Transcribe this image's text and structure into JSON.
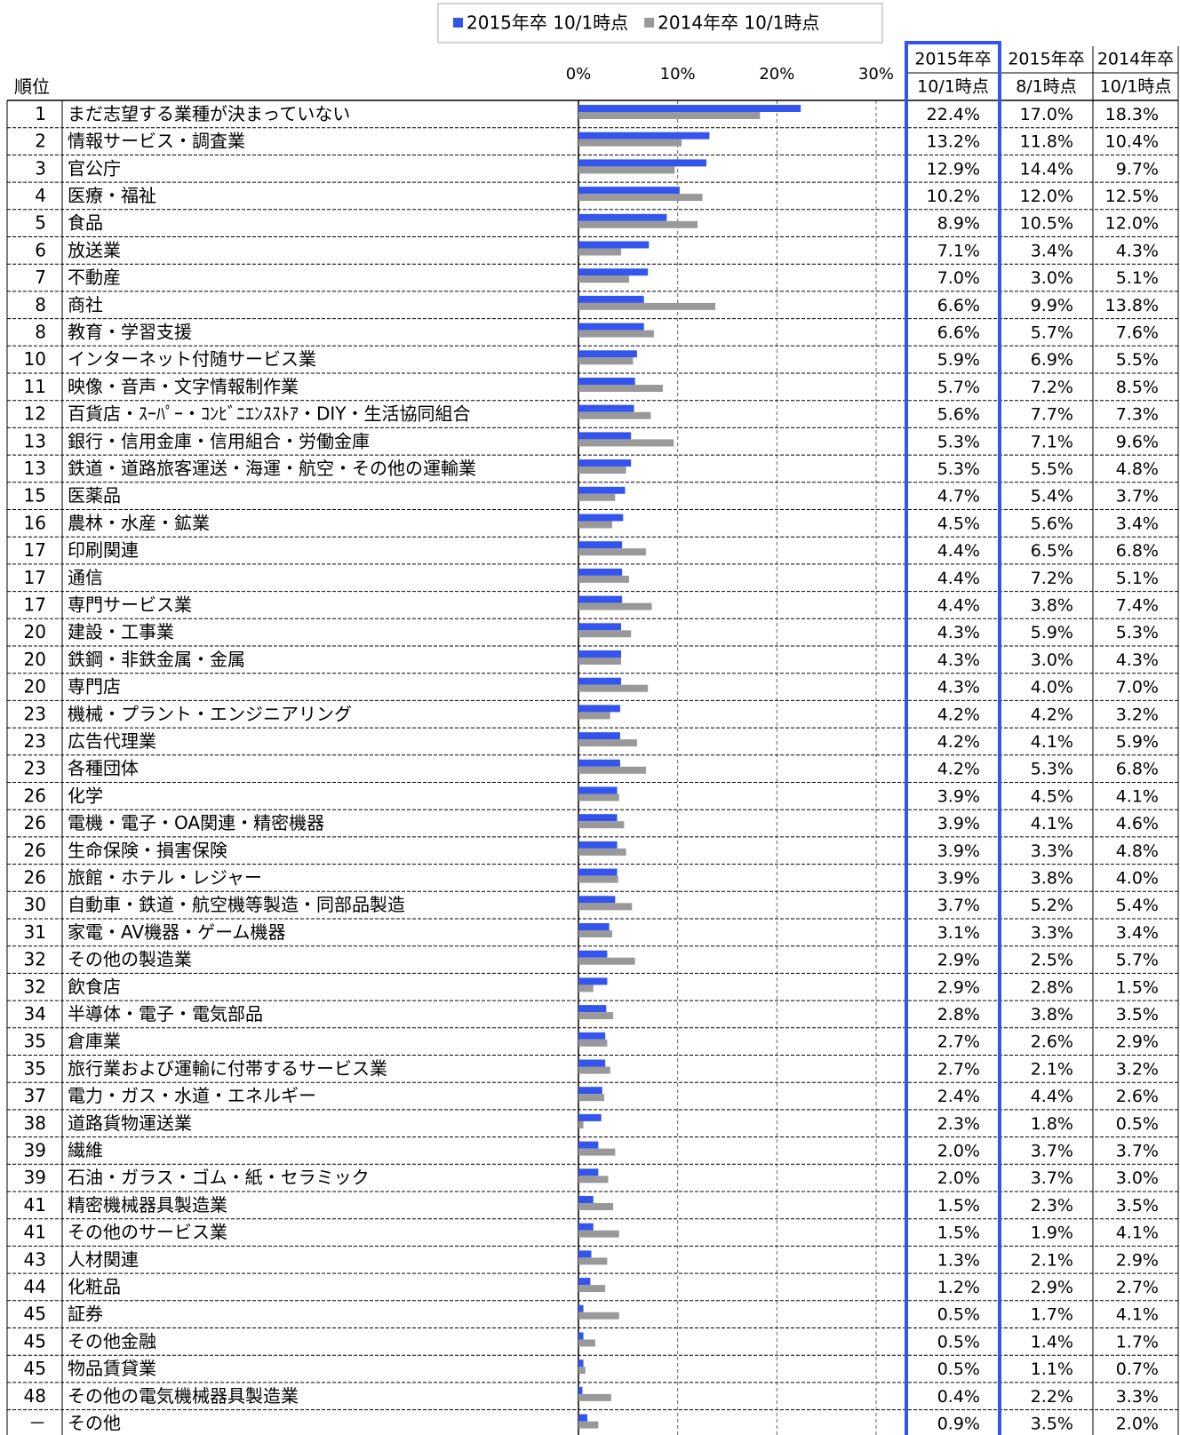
{
  "chart_data": {
    "type": "bar",
    "orientation": "horizontal",
    "rank_label": "順位",
    "xlim": [
      0,
      30
    ],
    "xticks": [
      {
        "value": 0,
        "label": "0%"
      },
      {
        "value": 10,
        "label": "10%"
      },
      {
        "value": 20,
        "label": "20%"
      },
      {
        "value": 30,
        "label": "30%"
      }
    ],
    "grid": true,
    "ranks": [
      "1",
      "2",
      "3",
      "4",
      "5",
      "6",
      "7",
      "8",
      "8",
      "10",
      "11",
      "12",
      "13",
      "13",
      "15",
      "16",
      "17",
      "17",
      "17",
      "20",
      "20",
      "20",
      "23",
      "23",
      "23",
      "26",
      "26",
      "26",
      "26",
      "30",
      "31",
      "32",
      "32",
      "34",
      "35",
      "35",
      "37",
      "38",
      "39",
      "39",
      "41",
      "41",
      "43",
      "44",
      "45",
      "45",
      "45",
      "48",
      "－"
    ],
    "categories": [
      "まだ志望する業種が決まっていない",
      "情報サービス・調査業",
      "官公庁",
      "医療・福祉",
      "食品",
      "放送業",
      "不動産",
      "商社",
      "教育・学習支援",
      "インターネット付随サービス業",
      "映像・音声・文字情報制作業",
      "百貨店・ｽｰﾊﾟｰ・ｺﾝﾋﾞﾆｴﾝｽｽﾄｱ・DIY・生活協同組合",
      "銀行・信用金庫・信用組合・労働金庫",
      "鉄道・道路旅客運送・海運・航空・その他の運輸業",
      "医薬品",
      "農林・水産・鉱業",
      "印刷関連",
      "通信",
      "専門サービス業",
      "建設・工事業",
      "鉄鋼・非鉄金属・金属",
      "専門店",
      "機械・プラント・エンジニアリング",
      "広告代理業",
      "各種団体",
      "化学",
      "電機・電子・OA関連・精密機器",
      "生命保険・損害保険",
      "旅館・ホテル・レジャー",
      "自動車・鉄道・航空機等製造・同部品製造",
      "家電・AV機器・ゲーム機器",
      "その他の製造業",
      "飲食店",
      "半導体・電子・電気部品",
      "倉庫業",
      "旅行業および運輸に付帯するサービス業",
      "電力・ガス・水道・エネルギー",
      "道路貨物運送業",
      "繊維",
      "石油・ガラス・ゴム・紙・セラミック",
      "精密機械器具製造業",
      "その他のサービス業",
      "人材関連",
      "化粧品",
      "証券",
      "その他金融",
      "物品賃貸業",
      "その他の電気機械器具製造業",
      "その他"
    ],
    "series": [
      {
        "name": "2015年卒 10/1時点",
        "header": [
          "2015年卒",
          "10/1時点"
        ],
        "color": "#3355ee",
        "values": [
          22.4,
          13.2,
          12.9,
          10.2,
          8.9,
          7.1,
          7.0,
          6.6,
          6.6,
          5.9,
          5.7,
          5.6,
          5.3,
          5.3,
          4.7,
          4.5,
          4.4,
          4.4,
          4.4,
          4.3,
          4.3,
          4.3,
          4.2,
          4.2,
          4.2,
          3.9,
          3.9,
          3.9,
          3.9,
          3.7,
          3.1,
          2.9,
          2.9,
          2.8,
          2.7,
          2.7,
          2.4,
          2.3,
          2.0,
          2.0,
          1.5,
          1.5,
          1.3,
          1.2,
          0.5,
          0.5,
          0.5,
          0.4,
          0.9
        ],
        "value_labels": [
          "22.4%",
          "13.2%",
          "12.9%",
          "10.2%",
          "8.9%",
          "7.1%",
          "7.0%",
          "6.6%",
          "6.6%",
          "5.9%",
          "5.7%",
          "5.6%",
          "5.3%",
          "5.3%",
          "4.7%",
          "4.5%",
          "4.4%",
          "4.4%",
          "4.4%",
          "4.3%",
          "4.3%",
          "4.3%",
          "4.2%",
          "4.2%",
          "4.2%",
          "3.9%",
          "3.9%",
          "3.9%",
          "3.9%",
          "3.7%",
          "3.1%",
          "2.9%",
          "2.9%",
          "2.8%",
          "2.7%",
          "2.7%",
          "2.4%",
          "2.3%",
          "2.0%",
          "2.0%",
          "1.5%",
          "1.5%",
          "1.3%",
          "1.2%",
          "0.5%",
          "0.5%",
          "0.5%",
          "0.4%",
          "0.9%"
        ]
      },
      {
        "header": [
          "2015年卒",
          "8/1時点"
        ],
        "values": [
          17.0,
          11.8,
          14.4,
          12.0,
          10.5,
          3.4,
          3.0,
          9.9,
          5.7,
          6.9,
          7.2,
          7.7,
          7.1,
          5.5,
          5.4,
          5.6,
          6.5,
          7.2,
          3.8,
          5.9,
          3.0,
          4.0,
          4.2,
          4.1,
          5.3,
          4.5,
          4.1,
          3.3,
          3.8,
          5.2,
          3.3,
          2.5,
          2.8,
          3.8,
          2.6,
          2.1,
          4.4,
          1.8,
          3.7,
          3.7,
          2.3,
          1.9,
          2.1,
          2.9,
          1.7,
          1.4,
          1.1,
          2.2,
          3.5
        ],
        "value_labels": [
          "17.0%",
          "11.8%",
          "14.4%",
          "12.0%",
          "10.5%",
          "3.4%",
          "3.0%",
          "9.9%",
          "5.7%",
          "6.9%",
          "7.2%",
          "7.7%",
          "7.1%",
          "5.5%",
          "5.4%",
          "5.6%",
          "6.5%",
          "7.2%",
          "3.8%",
          "5.9%",
          "3.0%",
          "4.0%",
          "4.2%",
          "4.1%",
          "5.3%",
          "4.5%",
          "4.1%",
          "3.3%",
          "3.8%",
          "5.2%",
          "3.3%",
          "2.5%",
          "2.8%",
          "3.8%",
          "2.6%",
          "2.1%",
          "4.4%",
          "1.8%",
          "3.7%",
          "3.7%",
          "2.3%",
          "1.9%",
          "2.1%",
          "2.9%",
          "1.7%",
          "1.4%",
          "1.1%",
          "2.2%",
          "3.5%"
        ]
      },
      {
        "name": "2014年卒 10/1時点",
        "header": [
          "2014年卒",
          "10/1時点"
        ],
        "color": "#999999",
        "values": [
          18.3,
          10.4,
          9.7,
          12.5,
          12.0,
          4.3,
          5.1,
          13.8,
          7.6,
          5.5,
          8.5,
          7.3,
          9.6,
          4.8,
          3.7,
          3.4,
          6.8,
          5.1,
          7.4,
          5.3,
          4.3,
          7.0,
          3.2,
          5.9,
          6.8,
          4.1,
          4.6,
          4.8,
          4.0,
          5.4,
          3.4,
          5.7,
          1.5,
          3.5,
          2.9,
          3.2,
          2.6,
          0.5,
          3.7,
          3.0,
          3.5,
          4.1,
          2.9,
          2.7,
          4.1,
          1.7,
          0.7,
          3.3,
          2.0
        ],
        "value_labels": [
          "18.3%",
          "10.4%",
          "9.7%",
          "12.5%",
          "12.0%",
          "4.3%",
          "5.1%",
          "13.8%",
          "7.6%",
          "5.5%",
          "8.5%",
          "7.3%",
          "9.6%",
          "4.8%",
          "3.7%",
          "3.4%",
          "6.8%",
          "5.1%",
          "7.4%",
          "5.3%",
          "4.3%",
          "7.0%",
          "3.2%",
          "5.9%",
          "6.8%",
          "4.1%",
          "4.6%",
          "4.8%",
          "4.0%",
          "5.4%",
          "3.4%",
          "5.7%",
          "1.5%",
          "3.5%",
          "2.9%",
          "3.2%",
          "2.6%",
          "0.5%",
          "3.7%",
          "3.0%",
          "3.5%",
          "4.1%",
          "2.9%",
          "2.7%",
          "4.1%",
          "1.7%",
          "0.7%",
          "3.3%",
          "2.0%"
        ]
      }
    ]
  }
}
